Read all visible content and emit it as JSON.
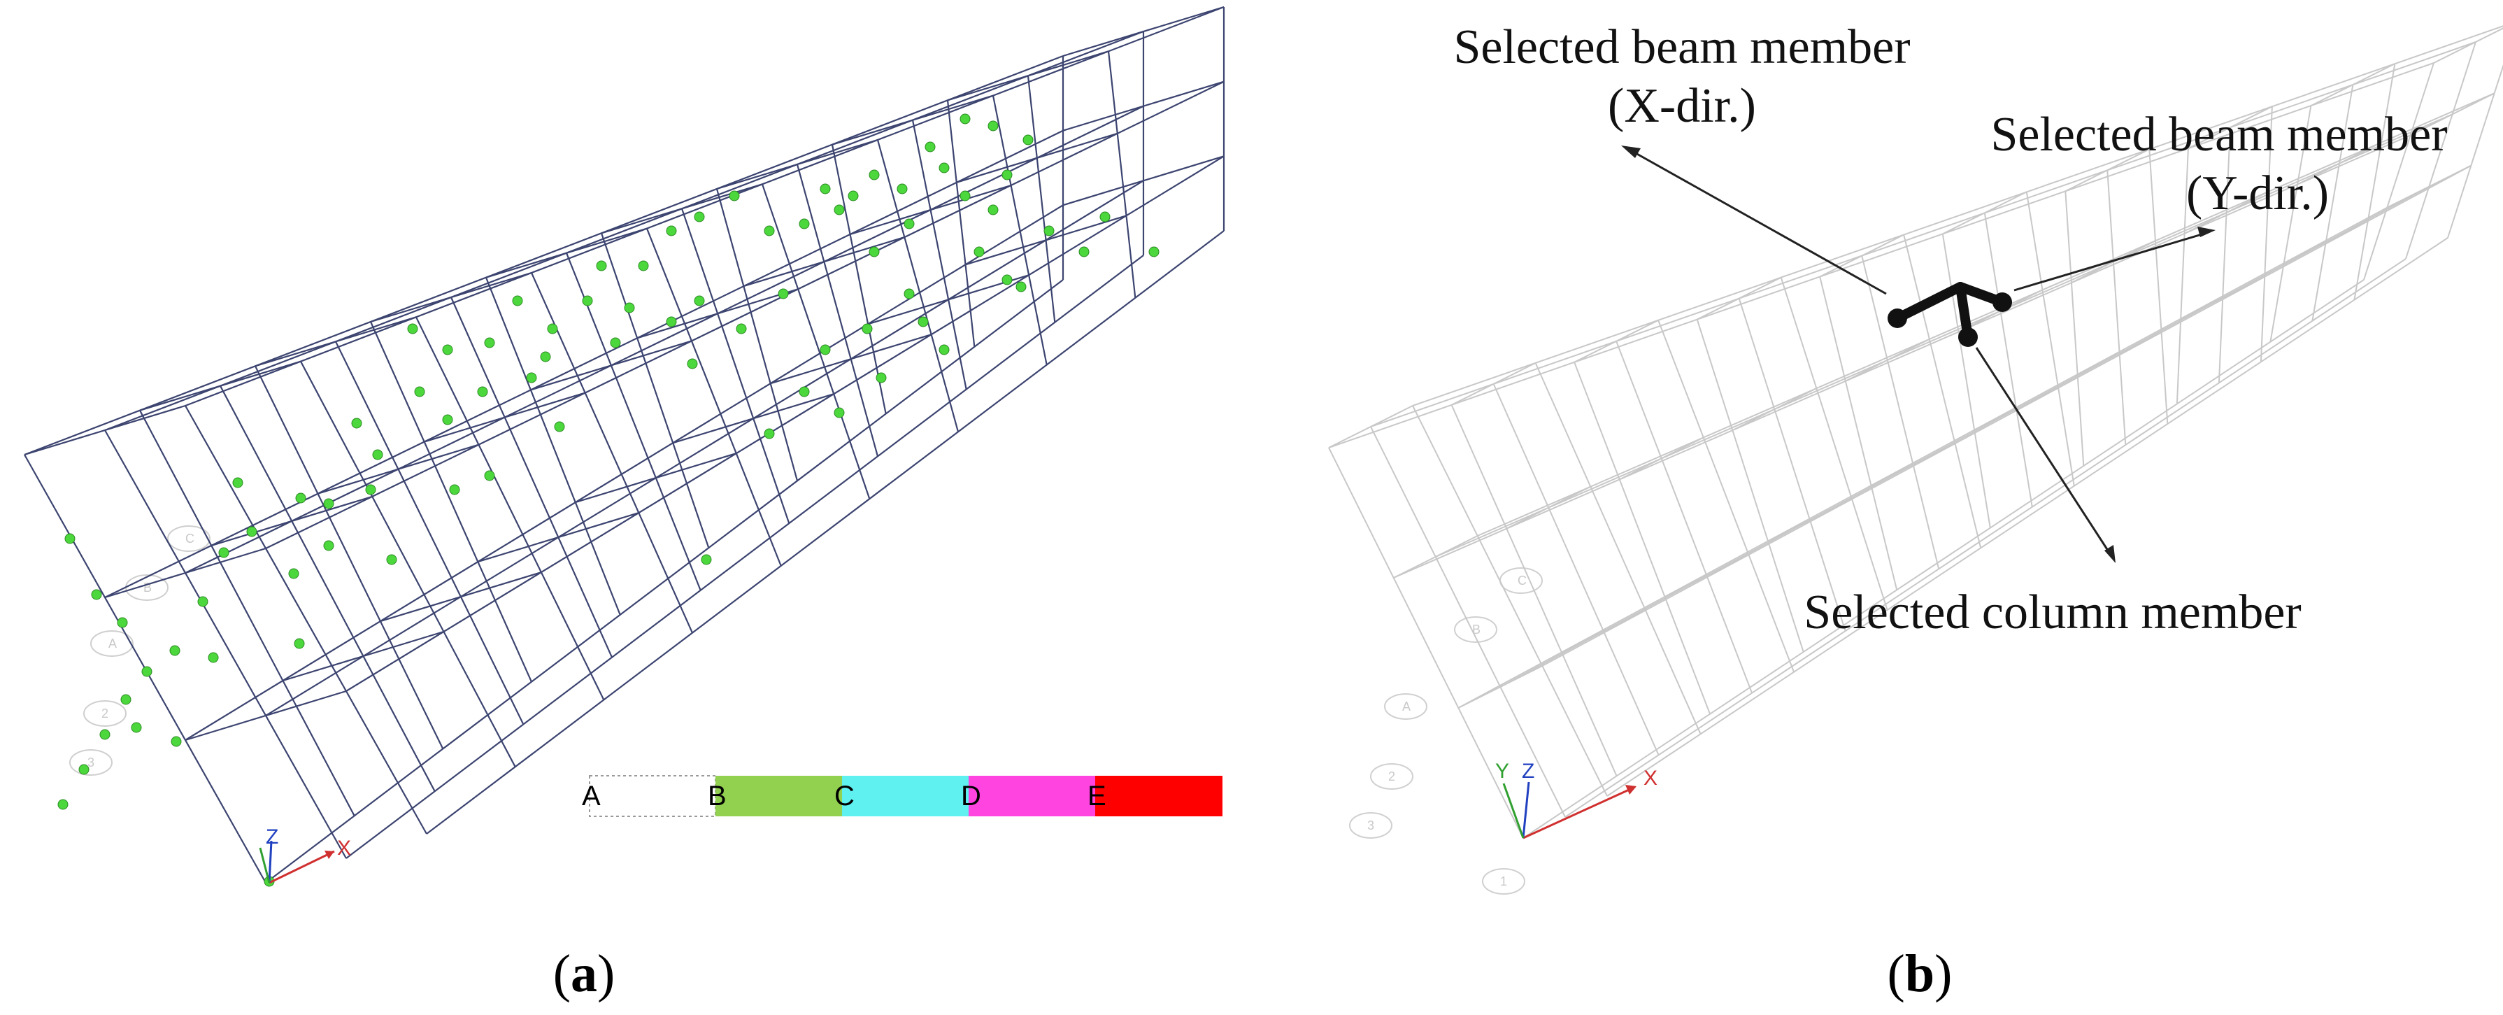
{
  "panel_a": {
    "caption_open": "(",
    "caption_letter": "a",
    "caption_close": ")",
    "legend_labels": [
      "A",
      "B",
      "C",
      "D",
      "E"
    ],
    "legend_colors": [
      "#ffffff",
      "#92d050",
      "#5ff0f0",
      "#ff44e0",
      "#ff0000"
    ],
    "hinge_color": "#4cd83c",
    "frame_color": "#3c4470",
    "grid_labels": [
      "A",
      "B",
      "C",
      "2",
      "3"
    ],
    "axis_labels": {
      "x": "X",
      "z": "Z"
    }
  },
  "panel_b": {
    "caption_open": "(",
    "caption_letter": "b",
    "caption_close": ")",
    "frame_color": "#c8c8c8",
    "member_color": "#111111",
    "annotations": {
      "beam_x_line1": "Selected beam member",
      "beam_x_line2": "(X-dir.)",
      "beam_y_line1": "Selected beam member",
      "beam_y_line2": "(Y-dir.)",
      "column": "Selected column member"
    },
    "grid_labels": [
      "A",
      "B",
      "C",
      "2",
      "3",
      "1"
    ],
    "axis_labels": {
      "x": "X",
      "y": "Y",
      "z": "Z"
    }
  }
}
